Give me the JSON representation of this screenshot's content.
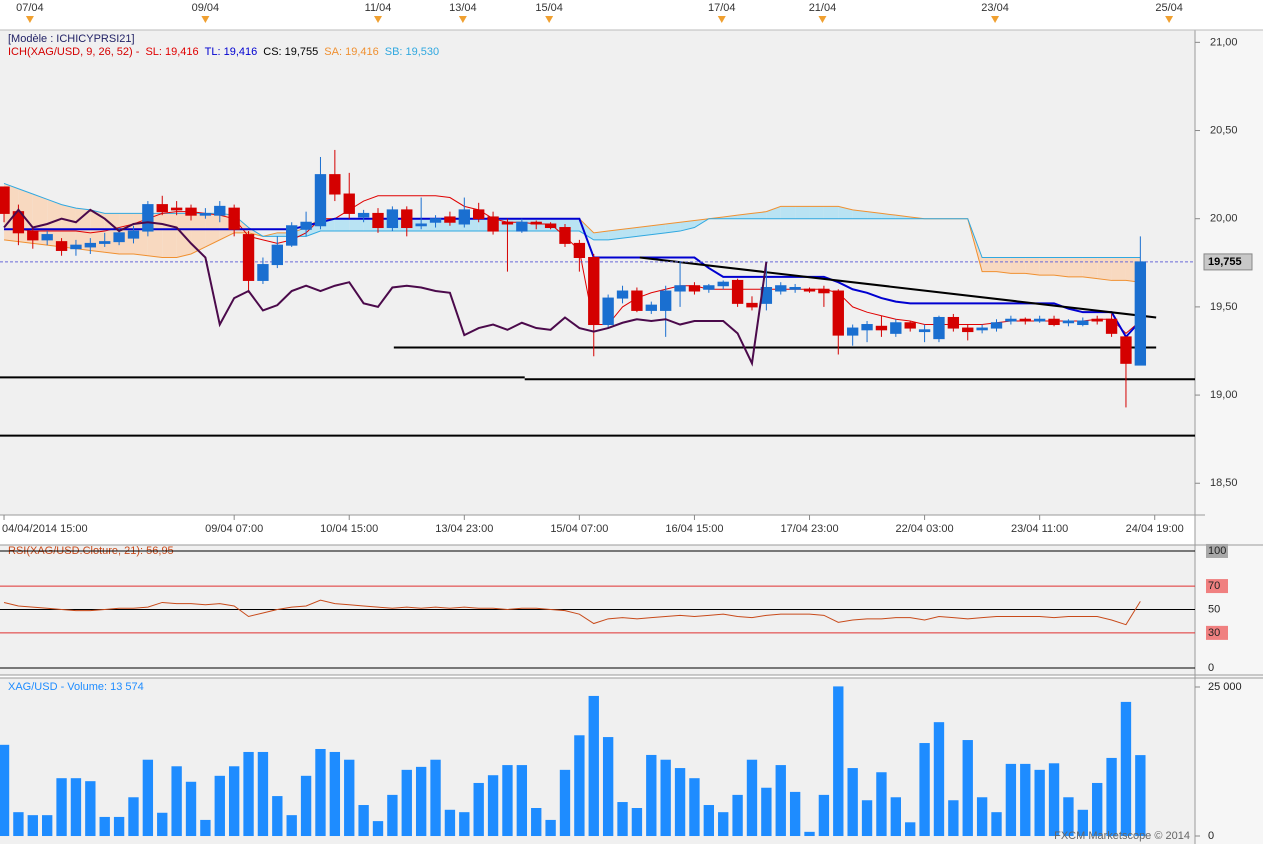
{
  "chart_data": [
    {
      "type": "candlestick",
      "title": "[Modèle : ICHICYPRSI21]",
      "indicator": "ICH(XAG/USD, 9, 26, 52) -",
      "up_color": "#1a6fd0",
      "down_color": "#d40000",
      "cloud_up_color": "#b9e3f3",
      "cloud_down_color": "#f8d9c0",
      "xlim": [
        -0.28,
        82.8
      ],
      "ylim": [
        18.32,
        21.07
      ],
      "yticks": [
        {
          "value": 21,
          "label": "21,00"
        },
        {
          "value": 20.5,
          "label": "20,50"
        },
        {
          "value": 20,
          "label": "20,00"
        },
        {
          "value": 19.5,
          "label": "19,50"
        },
        {
          "value": 19,
          "label": "19,00"
        },
        {
          "value": 18.5,
          "label": "18,50"
        }
      ],
      "xticks": [
        {
          "value": 0,
          "label": "04/04/2014 15:00"
        },
        {
          "value": 16,
          "label": "09/04 07:00"
        },
        {
          "value": 24,
          "label": "10/04 15:00"
        },
        {
          "value": 32,
          "label": "13/04 23:00"
        },
        {
          "value": 40,
          "label": "15/04 07:00"
        },
        {
          "value": 48,
          "label": "16/04 15:00"
        },
        {
          "value": 56,
          "label": "17/04 23:00"
        },
        {
          "value": 64,
          "label": "22/04 03:00"
        },
        {
          "value": 72,
          "label": "23/04 11:00"
        },
        {
          "value": 80,
          "label": "24/04 19:00"
        }
      ],
      "day_markers": [
        {
          "value": 1.8,
          "label": "07/04"
        },
        {
          "value": 14,
          "label": "09/04"
        },
        {
          "value": 26,
          "label": "11/04"
        },
        {
          "value": 31.9,
          "label": "13/04"
        },
        {
          "value": 37.9,
          "label": "15/04"
        },
        {
          "value": 49.9,
          "label": "17/04"
        },
        {
          "value": 56.9,
          "label": "21/04"
        },
        {
          "value": 68.9,
          "label": "23/04"
        },
        {
          "value": 81,
          "label": "25/04"
        }
      ],
      "marker_color": "#f0a030",
      "last_price": {
        "value": 19.755,
        "label": "19,755"
      },
      "last_price_color": "#6a6ad8",
      "lines": [
        {
          "x": [
            44.2,
            80.1
          ],
          "y": [
            19.78,
            19.44
          ]
        },
        {
          "x": [
            27.1,
            80.1
          ],
          "y": [
            19.27,
            19.27
          ]
        },
        {
          "x": [
            -0.28,
            36.2
          ],
          "y": [
            19.1,
            19.1
          ]
        },
        {
          "x": [
            36.2,
            82.8
          ],
          "y": [
            19.09,
            19.09
          ]
        },
        {
          "x": [
            -0.28,
            82.8
          ],
          "y": [
            18.77,
            18.77
          ]
        }
      ],
      "open": [
        20.18,
        20.04,
        19.93,
        19.88,
        19.87,
        19.83,
        19.84,
        19.86,
        19.87,
        19.89,
        19.93,
        20.08,
        20.06,
        20.06,
        20.02,
        20.02,
        20.06,
        19.91,
        19.65,
        19.74,
        19.85,
        19.94,
        19.96,
        20.25,
        20.14,
        20.01,
        20.03,
        19.95,
        20.05,
        19.96,
        19.98,
        20.01,
        19.97,
        20.05,
        20.01,
        19.98,
        19.93,
        19.98,
        19.97,
        19.95,
        19.86,
        19.78,
        19.4,
        19.55,
        19.59,
        19.48,
        19.48,
        19.59,
        19.62,
        19.6,
        19.62,
        19.65,
        19.52,
        19.52,
        19.59,
        19.6,
        19.6,
        19.6,
        19.59,
        19.34,
        19.37,
        19.39,
        19.35,
        19.41,
        19.36,
        19.32,
        19.44,
        19.38,
        19.37,
        19.38,
        19.42,
        19.43,
        19.42,
        19.43,
        19.41,
        19.4,
        19.43,
        19.43,
        19.33,
        19.17
      ],
      "high": [
        20.18,
        20.08,
        19.95,
        19.93,
        19.89,
        19.88,
        19.89,
        19.92,
        19.95,
        19.96,
        20.1,
        20.13,
        20.1,
        20.08,
        20.06,
        20.1,
        20.08,
        19.93,
        19.78,
        19.9,
        19.98,
        20.04,
        20.35,
        20.39,
        20.26,
        20.05,
        20.06,
        20.07,
        20.07,
        20.12,
        20.02,
        20.04,
        20.12,
        20.09,
        20.04,
        20.0,
        20.0,
        19.99,
        19.98,
        19.97,
        19.88,
        19.8,
        19.57,
        19.62,
        19.61,
        19.53,
        19.62,
        19.76,
        19.64,
        19.63,
        19.65,
        19.66,
        19.56,
        19.75,
        19.64,
        19.63,
        19.61,
        19.62,
        19.6,
        19.4,
        19.42,
        19.45,
        19.43,
        19.42,
        19.4,
        19.45,
        19.46,
        19.4,
        19.4,
        19.43,
        19.45,
        19.44,
        19.45,
        19.45,
        19.43,
        19.44,
        19.45,
        19.46,
        19.33,
        19.9
      ],
      "low": [
        19.98,
        19.85,
        19.83,
        19.85,
        19.79,
        19.79,
        19.8,
        19.84,
        19.85,
        19.86,
        19.9,
        20.02,
        20.02,
        19.99,
        20.0,
        19.98,
        19.9,
        19.58,
        19.63,
        19.72,
        19.84,
        19.9,
        19.94,
        20.1,
        20.0,
        19.98,
        19.92,
        19.93,
        19.9,
        19.94,
        19.95,
        19.96,
        19.95,
        19.98,
        19.91,
        19.7,
        19.92,
        19.94,
        19.94,
        19.84,
        19.7,
        19.22,
        19.38,
        19.52,
        19.47,
        19.46,
        19.33,
        19.5,
        19.57,
        19.58,
        19.6,
        19.5,
        19.48,
        19.48,
        19.57,
        19.58,
        19.58,
        19.5,
        19.23,
        19.28,
        19.3,
        19.33,
        19.33,
        19.36,
        19.3,
        19.3,
        19.36,
        19.31,
        19.35,
        19.36,
        19.4,
        19.4,
        19.41,
        19.39,
        19.39,
        19.39,
        19.4,
        19.33,
        18.93,
        19.17
      ],
      "close": [
        20.03,
        19.92,
        19.88,
        19.91,
        19.82,
        19.85,
        19.86,
        19.87,
        19.92,
        19.93,
        20.08,
        20.04,
        20.05,
        20.02,
        20.03,
        20.07,
        19.94,
        19.65,
        19.74,
        19.85,
        19.96,
        19.98,
        20.25,
        20.14,
        20.03,
        20.03,
        19.95,
        20.05,
        19.95,
        19.97,
        20.0,
        19.98,
        20.05,
        20.0,
        19.93,
        19.97,
        19.98,
        19.97,
        19.95,
        19.86,
        19.78,
        19.4,
        19.55,
        19.59,
        19.48,
        19.51,
        19.59,
        19.62,
        19.59,
        19.62,
        19.64,
        19.52,
        19.5,
        19.61,
        19.62,
        19.61,
        19.59,
        19.58,
        19.34,
        19.38,
        19.4,
        19.37,
        19.41,
        19.38,
        19.37,
        19.44,
        19.38,
        19.36,
        19.38,
        19.41,
        19.43,
        19.42,
        19.43,
        19.4,
        19.42,
        19.42,
        19.42,
        19.35,
        19.18,
        19.755
      ],
      "series": [
        {
          "label": "SL: 19,416",
          "color": "#e00000",
          "width": 1,
          "values": [
            19.94,
            19.94,
            19.93,
            19.93,
            19.93,
            19.93,
            19.92,
            19.93,
            19.95,
            19.97,
            20.0,
            20.03,
            20.04,
            20.04,
            20.03,
            20.02,
            20.0,
            19.9,
            19.88,
            19.86,
            19.88,
            19.92,
            20.0,
            20.0,
            20.05,
            20.1,
            20.13,
            20.13,
            20.13,
            20.13,
            20.13,
            20.12,
            20.07,
            20.05,
            20.0,
            19.98,
            19.98,
            19.97,
            19.97,
            19.9,
            19.82,
            19.4,
            19.4,
            19.5,
            19.55,
            19.58,
            19.6,
            19.62,
            19.62,
            19.6,
            19.6,
            19.6,
            19.6,
            19.6,
            19.6,
            19.6,
            19.6,
            19.6,
            19.58,
            19.5,
            19.47,
            19.45,
            19.43,
            19.42,
            19.4,
            19.4,
            19.4,
            19.4,
            19.4,
            19.41,
            19.42,
            19.42,
            19.42,
            19.42,
            19.42,
            19.42,
            19.43,
            19.43,
            19.35,
            19.42
          ]
        },
        {
          "label": "TL: 19,416",
          "color": "#0000d0",
          "width": 2,
          "values": [
            19.94,
            19.94,
            19.94,
            19.94,
            19.94,
            19.94,
            19.94,
            19.94,
            19.94,
            19.94,
            19.94,
            19.94,
            19.94,
            19.94,
            19.94,
            19.94,
            19.94,
            19.94,
            19.94,
            19.94,
            19.94,
            19.96,
            19.98,
            20.0,
            20.0,
            20.0,
            20.0,
            20.0,
            20.0,
            20.0,
            20.0,
            20.0,
            20.0,
            20.0,
            20.0,
            20.0,
            20.0,
            20.0,
            20.0,
            20.0,
            20.0,
            19.78,
            19.78,
            19.78,
            19.78,
            19.78,
            19.78,
            19.78,
            19.78,
            19.72,
            19.67,
            19.67,
            19.67,
            19.67,
            19.67,
            19.67,
            19.67,
            19.67,
            19.64,
            19.6,
            19.58,
            19.55,
            19.53,
            19.52,
            19.52,
            19.52,
            19.52,
            19.52,
            19.52,
            19.52,
            19.52,
            19.52,
            19.52,
            19.52,
            19.49,
            19.47,
            19.47,
            19.47,
            19.33,
            19.42
          ]
        },
        {
          "label": "CS: 19,755",
          "color": "#4b0a4b",
          "width": 2,
          "text_color": "#000000",
          "values": [
            19.95,
            20.05,
            19.95,
            19.97,
            20.0,
            19.98,
            20.05,
            20.0,
            19.93,
            19.97,
            19.98,
            19.97,
            19.95,
            19.86,
            19.78,
            19.4,
            19.55,
            19.59,
            19.48,
            19.51,
            19.59,
            19.62,
            19.59,
            19.62,
            19.64,
            19.52,
            19.5,
            19.61,
            19.62,
            19.61,
            19.59,
            19.58,
            19.34,
            19.38,
            19.4,
            19.37,
            19.41,
            19.38,
            19.37,
            19.44,
            19.38,
            19.36,
            19.38,
            19.41,
            19.43,
            19.42,
            19.43,
            19.4,
            19.42,
            19.42,
            19.42,
            19.35,
            19.18,
            19.755,
            null,
            null,
            null,
            null,
            null,
            null,
            null,
            null,
            null,
            null,
            null,
            null,
            null,
            null,
            null,
            null,
            null,
            null,
            null,
            null,
            null,
            null,
            null,
            null,
            null,
            null
          ]
        },
        {
          "label": "SA: 19,416",
          "color": "#f09030",
          "width": 1,
          "values": [
            19.88,
            19.87,
            19.86,
            19.85,
            19.84,
            19.83,
            19.82,
            19.81,
            19.8,
            19.8,
            19.79,
            19.78,
            19.78,
            19.8,
            19.84,
            19.88,
            19.92,
            19.92,
            19.9,
            19.92,
            19.92,
            19.95,
            20.0,
            20.0,
            20.0,
            20.0,
            20.0,
            20.0,
            20.0,
            20.0,
            20.0,
            20.0,
            20.0,
            20.0,
            20.0,
            20.0,
            20.0,
            20.0,
            20.0,
            20.0,
            20.0,
            19.92,
            19.93,
            19.94,
            19.95,
            19.96,
            19.97,
            19.98,
            19.99,
            20.0,
            20.01,
            20.02,
            20.03,
            20.04,
            20.07,
            20.07,
            20.07,
            20.07,
            20.07,
            20.05,
            20.04,
            20.03,
            20.02,
            20.01,
            20.0,
            20.0,
            20.0,
            20.0,
            19.7,
            19.7,
            19.69,
            19.69,
            19.68,
            19.68,
            19.67,
            19.67,
            19.66,
            19.65,
            19.65,
            19.64
          ]
        },
        {
          "label": "SB: 19,530",
          "color": "#30a8e0",
          "width": 1,
          "values": [
            20.2,
            20.17,
            20.14,
            20.11,
            20.08,
            20.06,
            20.05,
            20.03,
            20.03,
            20.03,
            20.03,
            20.03,
            20.03,
            20.03,
            20.03,
            20.03,
            20.02,
            19.95,
            19.9,
            19.9,
            19.9,
            19.9,
            19.93,
            19.93,
            19.93,
            19.93,
            19.93,
            19.93,
            19.93,
            19.93,
            19.93,
            19.93,
            19.93,
            19.93,
            19.93,
            19.93,
            19.93,
            19.93,
            19.93,
            19.93,
            19.93,
            19.88,
            19.88,
            19.89,
            19.9,
            19.91,
            19.92,
            19.93,
            19.95,
            20.0,
            20.0,
            20.0,
            20.0,
            20.0,
            20.0,
            20.0,
            20.0,
            20.0,
            20.0,
            20.0,
            20.0,
            20.0,
            20.0,
            20.0,
            20.0,
            20.0,
            20.0,
            20.0,
            19.78,
            19.78,
            19.78,
            19.78,
            19.78,
            19.78,
            19.78,
            19.78,
            19.78,
            19.78,
            19.78,
            19.78
          ]
        }
      ]
    },
    {
      "type": "line",
      "title": "RSI(XAG/USD.Cloture, 21): 56,95",
      "color": "#c84a1a",
      "ylim": [
        -6,
        105.1
      ],
      "yticks": [
        100,
        70,
        50,
        30,
        0
      ],
      "tick_colors": [
        "#000000",
        "#e03030",
        "#000000",
        "#e03030",
        "#000000"
      ],
      "tick_box_colors": [
        "#a8a8a8",
        "#f08080",
        null,
        "#f08080",
        null
      ],
      "values": [
        56,
        53,
        52,
        51,
        50,
        49,
        49,
        50,
        51,
        51,
        52,
        56,
        55,
        55,
        54,
        55,
        53,
        44,
        47,
        50,
        52,
        53,
        58,
        55,
        54,
        53,
        52,
        51,
        52,
        51,
        52,
        51,
        52,
        51,
        51,
        50,
        51,
        51,
        50,
        49,
        46,
        38,
        42,
        43,
        42,
        43,
        44,
        45,
        44,
        45,
        46,
        44,
        43,
        45,
        46,
        46,
        46,
        45,
        39,
        41,
        42,
        42,
        43,
        43,
        41,
        44,
        43,
        42,
        43,
        44,
        44,
        44,
        44,
        43,
        44,
        44,
        44,
        41,
        37,
        56.95
      ]
    },
    {
      "type": "bar",
      "title": "XAG/USD - Volume: 13 574",
      "color": "#1e8cff",
      "ylim": [
        -1340,
        26510
      ],
      "yticks": [
        {
          "value": 25000,
          "label": "25 000"
        },
        0
      ],
      "values": [
        15300,
        4000,
        3500,
        3500,
        9700,
        9700,
        9200,
        3200,
        3200,
        6500,
        12800,
        3900,
        11700,
        9100,
        2700,
        10100,
        11700,
        14100,
        14100,
        6700,
        3500,
        10100,
        14600,
        14100,
        12800,
        5200,
        2500,
        6900,
        11100,
        11600,
        12800,
        4400,
        4000,
        8900,
        10200,
        11900,
        11900,
        4700,
        2700,
        11100,
        16900,
        23500,
        16600,
        5700,
        4700,
        13600,
        12800,
        11400,
        9700,
        5200,
        4000,
        6900,
        12800,
        8100,
        11900,
        7400,
        700,
        6900,
        25100,
        11400,
        6000,
        10700,
        6500,
        2300,
        15600,
        19100,
        6000,
        16100,
        6500,
        4000,
        12100,
        12100,
        11100,
        12200,
        6500,
        4400,
        8900,
        13100,
        22500,
        13574
      ]
    }
  ],
  "credit": "FXCM Marketscope © 2014"
}
